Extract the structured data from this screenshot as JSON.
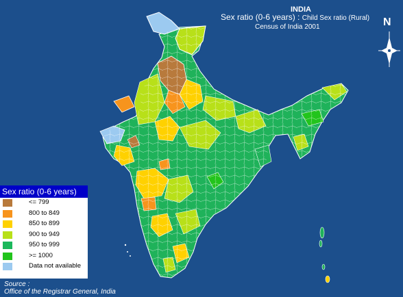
{
  "title": {
    "country": "INDIA",
    "main": "Sex ratio (0-6 years) :",
    "sub": "Child Sex ratio (Rural)",
    "census": "Census of India 2001"
  },
  "north_arrow": {
    "label": "N",
    "icon": "compass-rose-icon"
  },
  "legend": {
    "title": "Sex ratio (0-6 years)",
    "items": [
      {
        "label": "<= 799",
        "color": "#b87a3c"
      },
      {
        "label": "800 to 849",
        "color": "#f7941d"
      },
      {
        "label": "850 to 899",
        "color": "#ffd100"
      },
      {
        "label": "900 to 949",
        "color": "#b8e019"
      },
      {
        "label": "950 to 999",
        "color": "#1cb85c"
      },
      {
        "label": ">= 1000",
        "color": "#22c41c"
      },
      {
        "label": "Data not available",
        "color": "#9ccaf0"
      }
    ]
  },
  "source": {
    "label": "Source :",
    "text": "Office of the Registrar General, India"
  },
  "colors": {
    "background": "#1c4f8c",
    "district_border": "#ffffff",
    "legend_header": "#0000c8"
  }
}
